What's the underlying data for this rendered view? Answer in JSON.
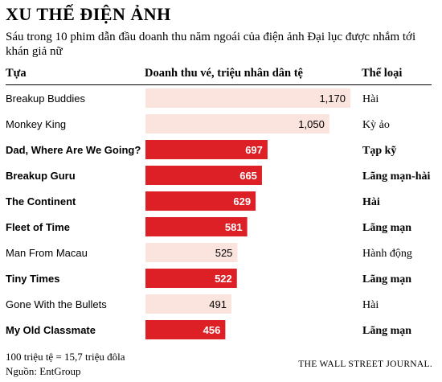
{
  "title": "XU THẾ ĐIỆN ẢNH",
  "subtitle": "Sáu trong 10 phim dẫn đầu doanh thu năm ngoái của điện ảnh Đại lục được nhắm tới khán giả nữ",
  "headers": {
    "title": "Tựa",
    "value": "Doanh thu vé, triệu nhân dân tệ",
    "genre": "Thể loại"
  },
  "colors": {
    "highlight": "#dd1f26",
    "regular": "#fbe3de"
  },
  "chart_data": {
    "type": "bar",
    "orientation": "horizontal",
    "categories": [
      "Breakup Buddies",
      "Monkey King",
      "Dad, Where Are We Going?",
      "Breakup Guru",
      "The Continent",
      "Fleet of Time",
      "Man From Macau",
      "Tiny Times",
      "Gone With the Bullets",
      "My Old Classmate"
    ],
    "values": [
      1170,
      1050,
      697,
      665,
      629,
      581,
      525,
      522,
      491,
      456
    ],
    "value_labels": [
      "1,170",
      "1,050",
      "697",
      "665",
      "629",
      "581",
      "525",
      "522",
      "491",
      "456"
    ],
    "genres": [
      "Hài",
      "Kỳ ảo",
      "Tạp kỹ",
      "Lãng mạn-hài",
      "Hài",
      "Lãng mạn",
      "Hành động",
      "Lãng mạn",
      "Hài",
      "Lãng mạn"
    ],
    "targeted_at_women": [
      false,
      false,
      true,
      true,
      true,
      true,
      false,
      true,
      false,
      true
    ],
    "xlim": [
      0,
      1170
    ],
    "grid": false,
    "legend": "none"
  },
  "footnotes": {
    "exchange": "100 triệu tệ = 15,7 triệu đôla",
    "source": "Nguồn: EntGroup"
  },
  "credit": "THE WALL STREET JOURNAL."
}
